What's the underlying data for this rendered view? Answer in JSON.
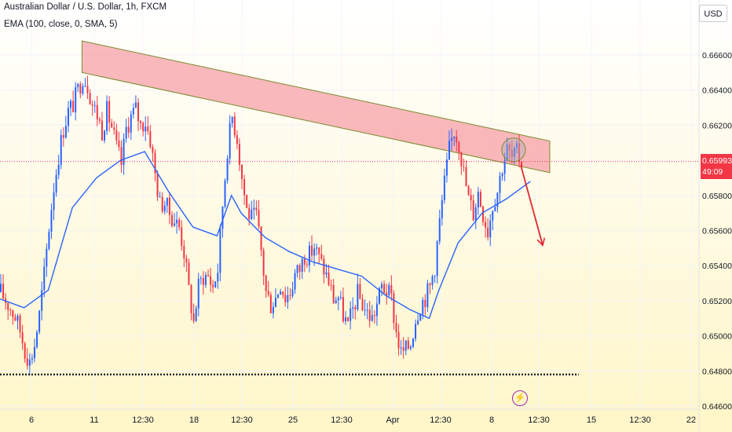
{
  "header": {
    "title": "Australian Dollar / U.S. Dollar, 1h, FXCM",
    "indicator": "EMA (100, close, 0, SMA, 5)"
  },
  "currency_button": "USD",
  "last_price": {
    "value": "0.65993",
    "countdown": "49:09"
  },
  "colors": {
    "bull": "#2962ff",
    "bear": "#f23645",
    "ema": "#2962ff",
    "zone_fill": "#f7a0a8",
    "zone_border": "#7a8b2e",
    "arrow": "#e0262f",
    "support": "#131722",
    "price_line": "#f23645",
    "background_top": "#ffffff",
    "background_bottom": "#fff6c8"
  },
  "icons": {
    "alert": "lightning-icon"
  },
  "chart_data": {
    "type": "candlestick",
    "symbol": "AUDUSD",
    "interval": "1h",
    "source": "FXCM",
    "y_axis": {
      "range": [
        0.646,
        0.668
      ],
      "ticks": [
        "0.66600",
        "0.66400",
        "0.66200",
        "0.66000",
        "0.65800",
        "0.65600",
        "0.65400",
        "0.65200",
        "0.65000",
        "0.64800",
        "0.64600"
      ]
    },
    "x_axis": {
      "ticks": [
        "6",
        "11",
        "12:30",
        "18",
        "12:30",
        "25",
        "12:30",
        "Apr",
        "12:30",
        "8",
        "12:30",
        "15",
        "12:30",
        "22"
      ]
    },
    "close_path": [
      [
        0,
        0.6525
      ],
      [
        3,
        0.6518
      ],
      [
        6,
        0.6511
      ],
      [
        8,
        0.6503
      ],
      [
        10,
        0.6492
      ],
      [
        12,
        0.6485
      ],
      [
        14,
        0.6495
      ],
      [
        16,
        0.6512
      ],
      [
        18,
        0.6535
      ],
      [
        20,
        0.6562
      ],
      [
        22,
        0.6585
      ],
      [
        24,
        0.6603
      ],
      [
        26,
        0.6618
      ],
      [
        28,
        0.6628
      ],
      [
        30,
        0.6632
      ],
      [
        32,
        0.664
      ],
      [
        34,
        0.6648
      ],
      [
        36,
        0.6643
      ],
      [
        38,
        0.6632
      ],
      [
        40,
        0.6626
      ],
      [
        42,
        0.6617
      ],
      [
        44,
        0.6628
      ],
      [
        46,
        0.6619
      ],
      [
        48,
        0.6607
      ],
      [
        50,
        0.6598
      ],
      [
        52,
        0.6618
      ],
      [
        54,
        0.6625
      ],
      [
        56,
        0.6629
      ],
      [
        58,
        0.662
      ],
      [
        60,
        0.6622
      ],
      [
        62,
        0.6612
      ],
      [
        64,
        0.6592
      ],
      [
        66,
        0.6575
      ],
      [
        68,
        0.6576
      ],
      [
        70,
        0.657
      ],
      [
        72,
        0.6566
      ],
      [
        74,
        0.6562
      ],
      [
        76,
        0.6548
      ],
      [
        78,
        0.6526
      ],
      [
        80,
        0.6508
      ],
      [
        82,
        0.6528
      ],
      [
        84,
        0.6534
      ],
      [
        86,
        0.6534
      ],
      [
        88,
        0.6528
      ],
      [
        90,
        0.6538
      ],
      [
        92,
        0.6575
      ],
      [
        94,
        0.6607
      ],
      [
        96,
        0.6625
      ],
      [
        98,
        0.6613
      ],
      [
        100,
        0.659
      ],
      [
        102,
        0.6572
      ],
      [
        104,
        0.6567
      ],
      [
        106,
        0.6568
      ],
      [
        108,
        0.6548
      ],
      [
        110,
        0.6525
      ],
      [
        112,
        0.6518
      ],
      [
        114,
        0.6522
      ],
      [
        116,
        0.653
      ],
      [
        118,
        0.6522
      ],
      [
        120,
        0.6525
      ],
      [
        122,
        0.6535
      ],
      [
        124,
        0.6538
      ],
      [
        126,
        0.6546
      ],
      [
        128,
        0.6546
      ],
      [
        130,
        0.6551
      ],
      [
        132,
        0.6544
      ],
      [
        134,
        0.6538
      ],
      [
        136,
        0.6531
      ],
      [
        138,
        0.6521
      ],
      [
        140,
        0.6522
      ],
      [
        142,
        0.6512
      ],
      [
        144,
        0.6505
      ],
      [
        146,
        0.6515
      ],
      [
        148,
        0.6524
      ],
      [
        150,
        0.6518
      ],
      [
        152,
        0.6513
      ],
      [
        154,
        0.651
      ],
      [
        156,
        0.6518
      ],
      [
        158,
        0.6528
      ],
      [
        160,
        0.6526
      ],
      [
        162,
        0.6521
      ],
      [
        164,
        0.6502
      ],
      [
        166,
        0.649
      ],
      [
        168,
        0.6492
      ],
      [
        170,
        0.6496
      ],
      [
        172,
        0.651
      ],
      [
        174,
        0.6518
      ],
      [
        176,
        0.6522
      ],
      [
        178,
        0.6528
      ],
      [
        180,
        0.654
      ],
      [
        182,
        0.6565
      ],
      [
        184,
        0.6587
      ],
      [
        186,
        0.6606
      ],
      [
        188,
        0.6617
      ],
      [
        190,
        0.661
      ],
      [
        192,
        0.6593
      ],
      [
        194,
        0.6578
      ],
      [
        196,
        0.657
      ],
      [
        198,
        0.6582
      ],
      [
        200,
        0.657
      ],
      [
        202,
        0.656
      ],
      [
        204,
        0.6575
      ],
      [
        206,
        0.6583
      ],
      [
        208,
        0.6597
      ],
      [
        210,
        0.6606
      ],
      [
        212,
        0.6601
      ],
      [
        214,
        0.6604
      ],
      [
        216,
        0.6599
      ]
    ],
    "ema": [
      [
        0,
        0.6521
      ],
      [
        10,
        0.6516
      ],
      [
        20,
        0.6526
      ],
      [
        30,
        0.6573
      ],
      [
        40,
        0.659
      ],
      [
        50,
        0.66
      ],
      [
        60,
        0.6605
      ],
      [
        70,
        0.6582
      ],
      [
        80,
        0.6562
      ],
      [
        90,
        0.6557
      ],
      [
        96,
        0.658
      ],
      [
        100,
        0.657
      ],
      [
        110,
        0.6556
      ],
      [
        120,
        0.6548
      ],
      [
        130,
        0.6542
      ],
      [
        140,
        0.6538
      ],
      [
        150,
        0.6534
      ],
      [
        160,
        0.6523
      ],
      [
        170,
        0.6515
      ],
      [
        178,
        0.651
      ],
      [
        182,
        0.6526
      ],
      [
        190,
        0.6553
      ],
      [
        200,
        0.657
      ],
      [
        210,
        0.6578
      ],
      [
        220,
        0.6588
      ]
    ],
    "annotations": [
      {
        "type": "parallel_channel",
        "label": "resistance zone",
        "from": [
          34,
          0.6668
        ],
        "to": [
          228,
          0.6611
        ],
        "width": 0.0018
      },
      {
        "type": "circle",
        "center": [
          213,
          0.6606
        ]
      },
      {
        "type": "arrow",
        "from": [
          216,
          0.6597
        ],
        "to": [
          225,
          0.6552
        ]
      },
      {
        "type": "dotted_line",
        "label": "support",
        "from": [
          0,
          0.6478
        ],
        "to": [
          240,
          0.6478
        ]
      },
      {
        "type": "price_line",
        "value": 0.65993
      }
    ]
  }
}
